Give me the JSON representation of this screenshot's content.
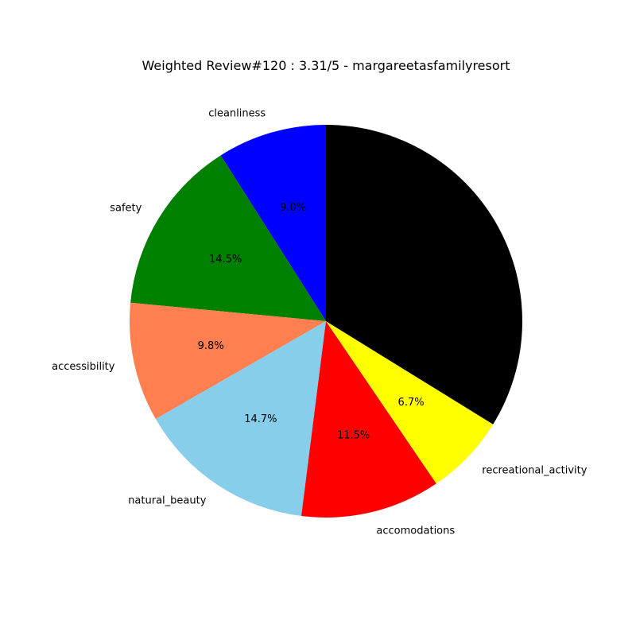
{
  "chart_data": {
    "type": "pie",
    "title": "Weighted Review#120 : 3.31/5 - margareetasfamilyresort",
    "slices": [
      {
        "label": "cleanliness",
        "value": 9.0,
        "pct_text": "9.0%",
        "color": "#0000ff"
      },
      {
        "label": "safety",
        "value": 14.5,
        "pct_text": "14.5%",
        "color": "#008000"
      },
      {
        "label": "accessibility",
        "value": 9.8,
        "pct_text": "9.8%",
        "color": "#ff7f50"
      },
      {
        "label": "natural_beauty",
        "value": 14.7,
        "pct_text": "14.7%",
        "color": "#87ceeb"
      },
      {
        "label": "accomodations",
        "value": 11.5,
        "pct_text": "11.5%",
        "color": "#ff0000"
      },
      {
        "label": "recreational_activity",
        "value": 6.7,
        "pct_text": "6.7%",
        "color": "#ffff00"
      },
      {
        "label": "",
        "value": 33.8,
        "pct_text": "",
        "color": "#000000"
      }
    ]
  }
}
